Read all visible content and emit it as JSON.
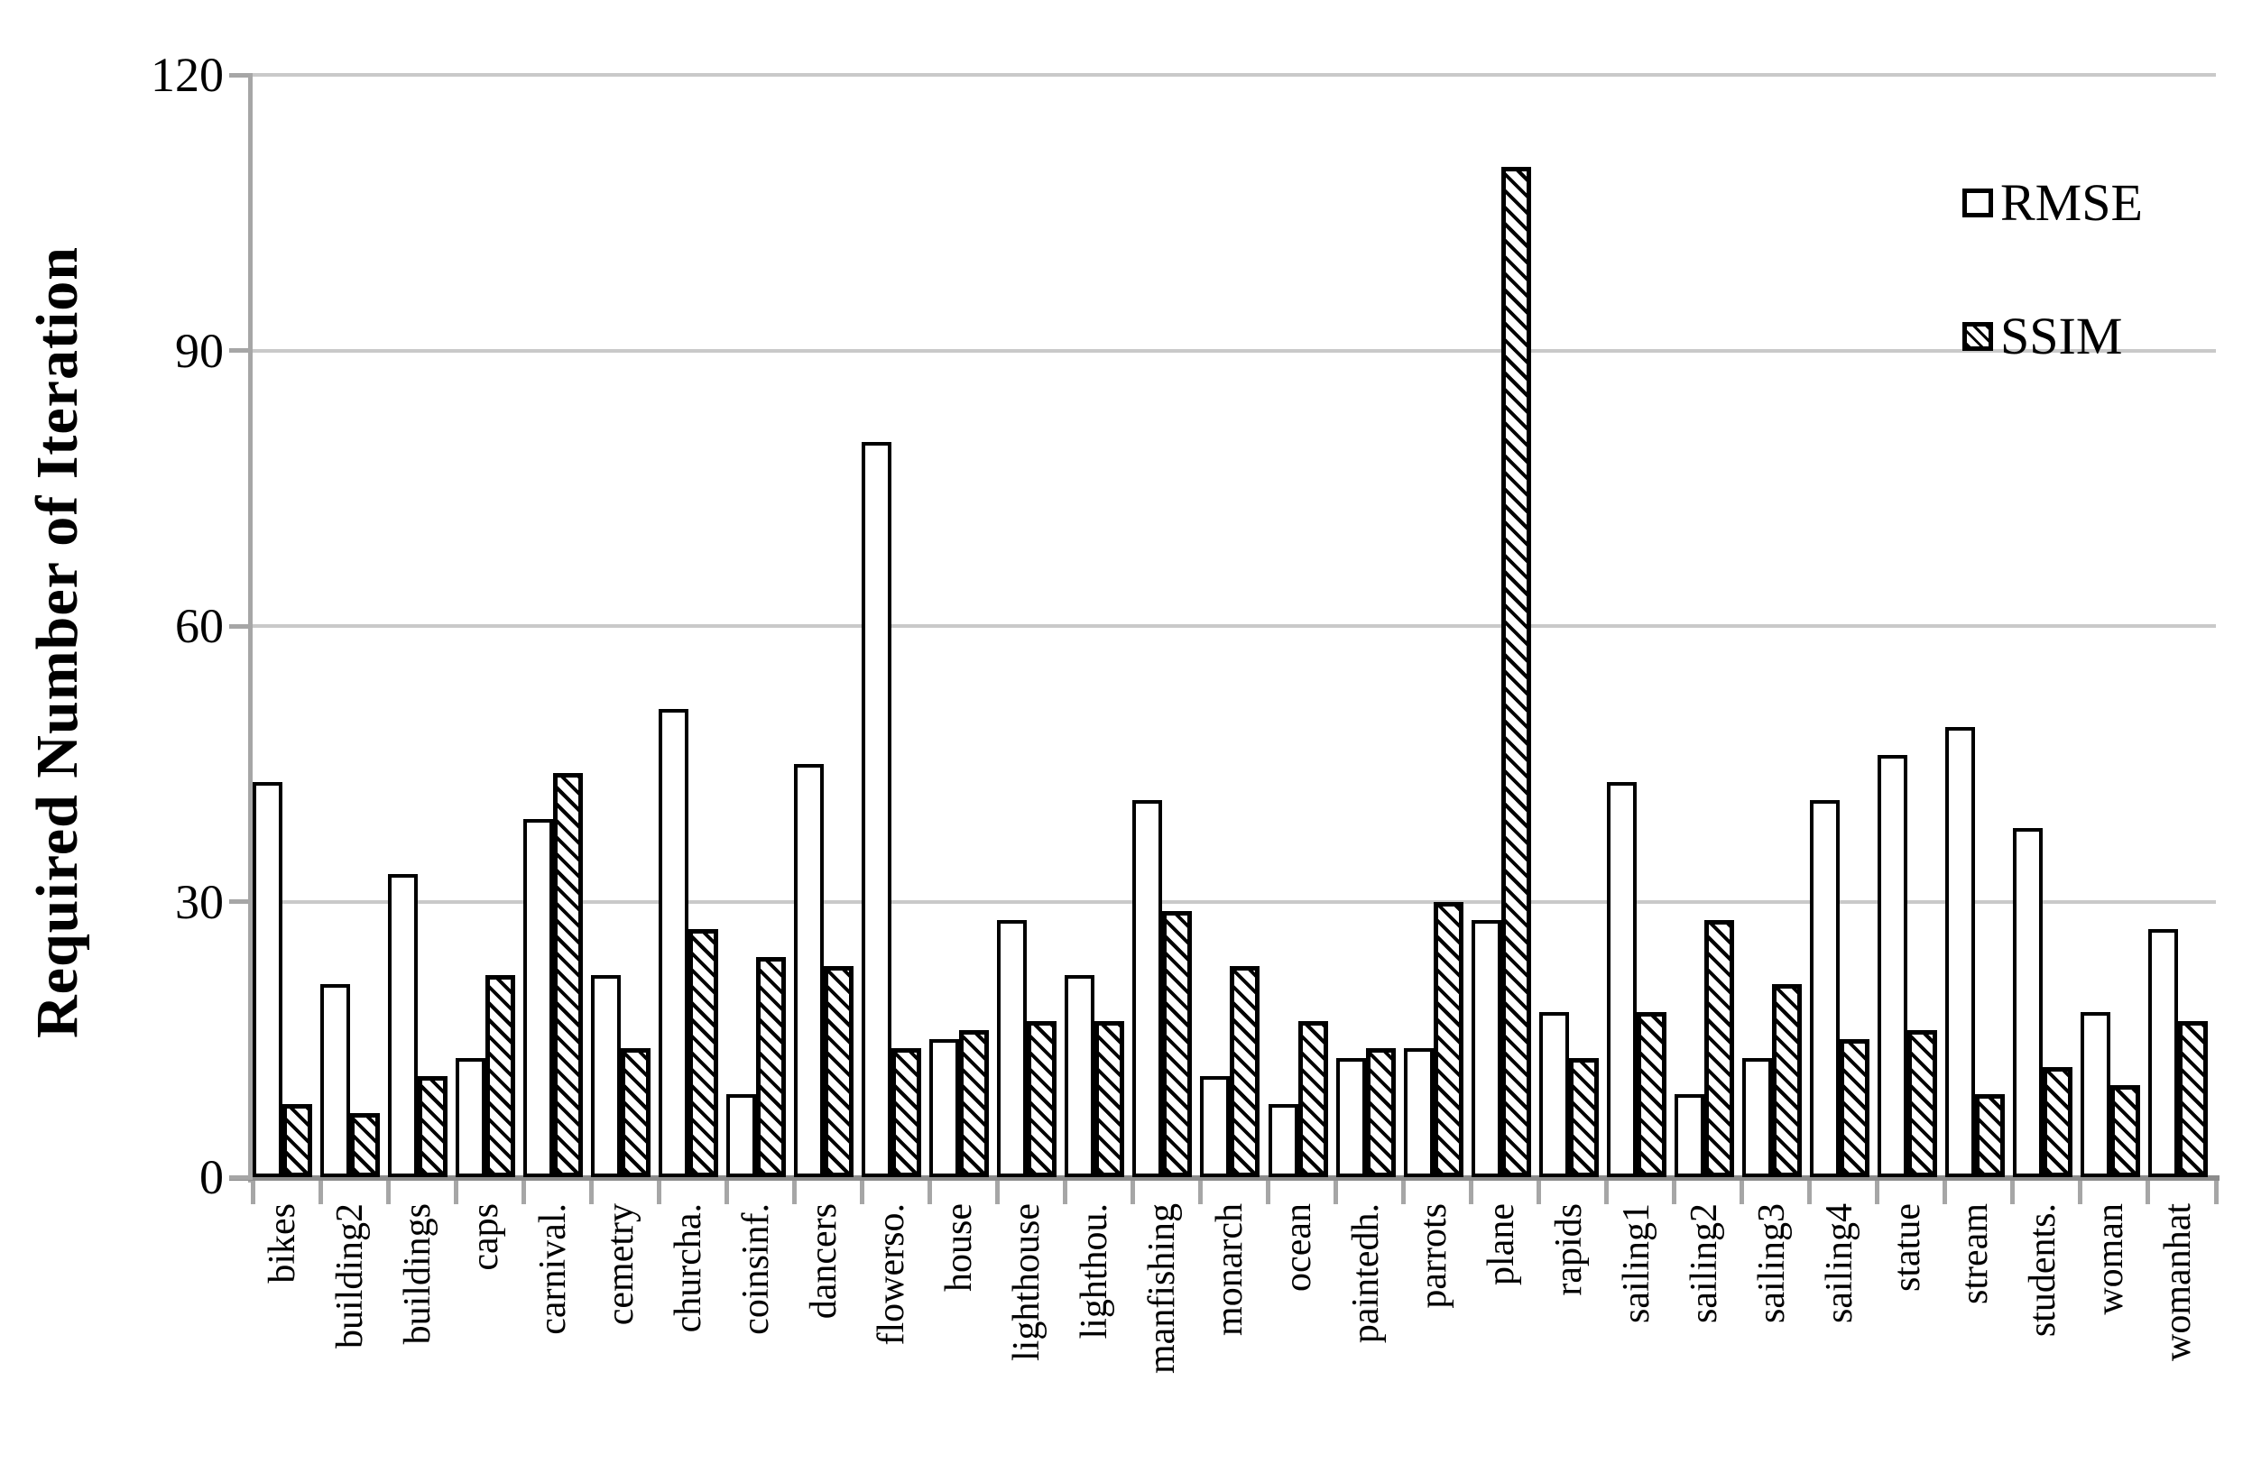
{
  "y_axis": {
    "title": "Required Number of Iteration",
    "tick_labels": [
      "0",
      "30",
      "60",
      "90",
      "120"
    ]
  },
  "legend": {
    "items": [
      {
        "label": "RMSE",
        "swatch": "plain-white-square-icon"
      },
      {
        "label": "SSIM",
        "swatch": "diagonal-hatch-square-icon"
      }
    ]
  },
  "chart_data": {
    "type": "bar",
    "title": "",
    "xlabel": "",
    "ylabel": "Required Number of Iteration",
    "ylim": [
      0,
      120
    ],
    "yticks": [
      0,
      30,
      60,
      90,
      120
    ],
    "grid": true,
    "legend_position": "top-right",
    "bar_style": {
      "RMSE": "white fill, black outline",
      "SSIM": "diagonal hatch fill, black outline"
    },
    "colors": {
      "bar_fill": "#ffffff",
      "bar_border": "#000000",
      "gridline": "#c9c9c9",
      "axis": "#a6a6a6"
    },
    "categories": [
      "bikes",
      "building2",
      "buildings",
      "caps",
      "carnival.",
      "cemetry",
      "churcha.",
      "coinsinf.",
      "dancers",
      "flowerso.",
      "house",
      "lighthouse",
      "lighthou.",
      "manfishing",
      "monarch",
      "ocean",
      "paintedh.",
      "parrots",
      "plane",
      "rapids",
      "sailing1",
      "sailing2",
      "sailing3",
      "sailing4",
      "statue",
      "stream",
      "students.",
      "woman",
      "womanhat"
    ],
    "series": [
      {
        "name": "RMSE",
        "values": [
          43,
          21,
          33,
          13,
          39,
          22,
          51,
          9,
          45,
          80,
          15,
          28,
          22,
          41,
          11,
          8,
          13,
          14,
          28,
          18,
          43,
          9,
          13,
          41,
          46,
          49,
          38,
          18,
          27
        ]
      },
      {
        "name": "SSIM",
        "values": [
          8,
          7,
          11,
          22,
          44,
          14,
          27,
          24,
          23,
          14,
          16,
          17,
          17,
          29,
          23,
          17,
          14,
          30,
          110,
          13,
          18,
          28,
          21,
          15,
          16,
          9,
          12,
          10,
          17
        ]
      }
    ]
  }
}
